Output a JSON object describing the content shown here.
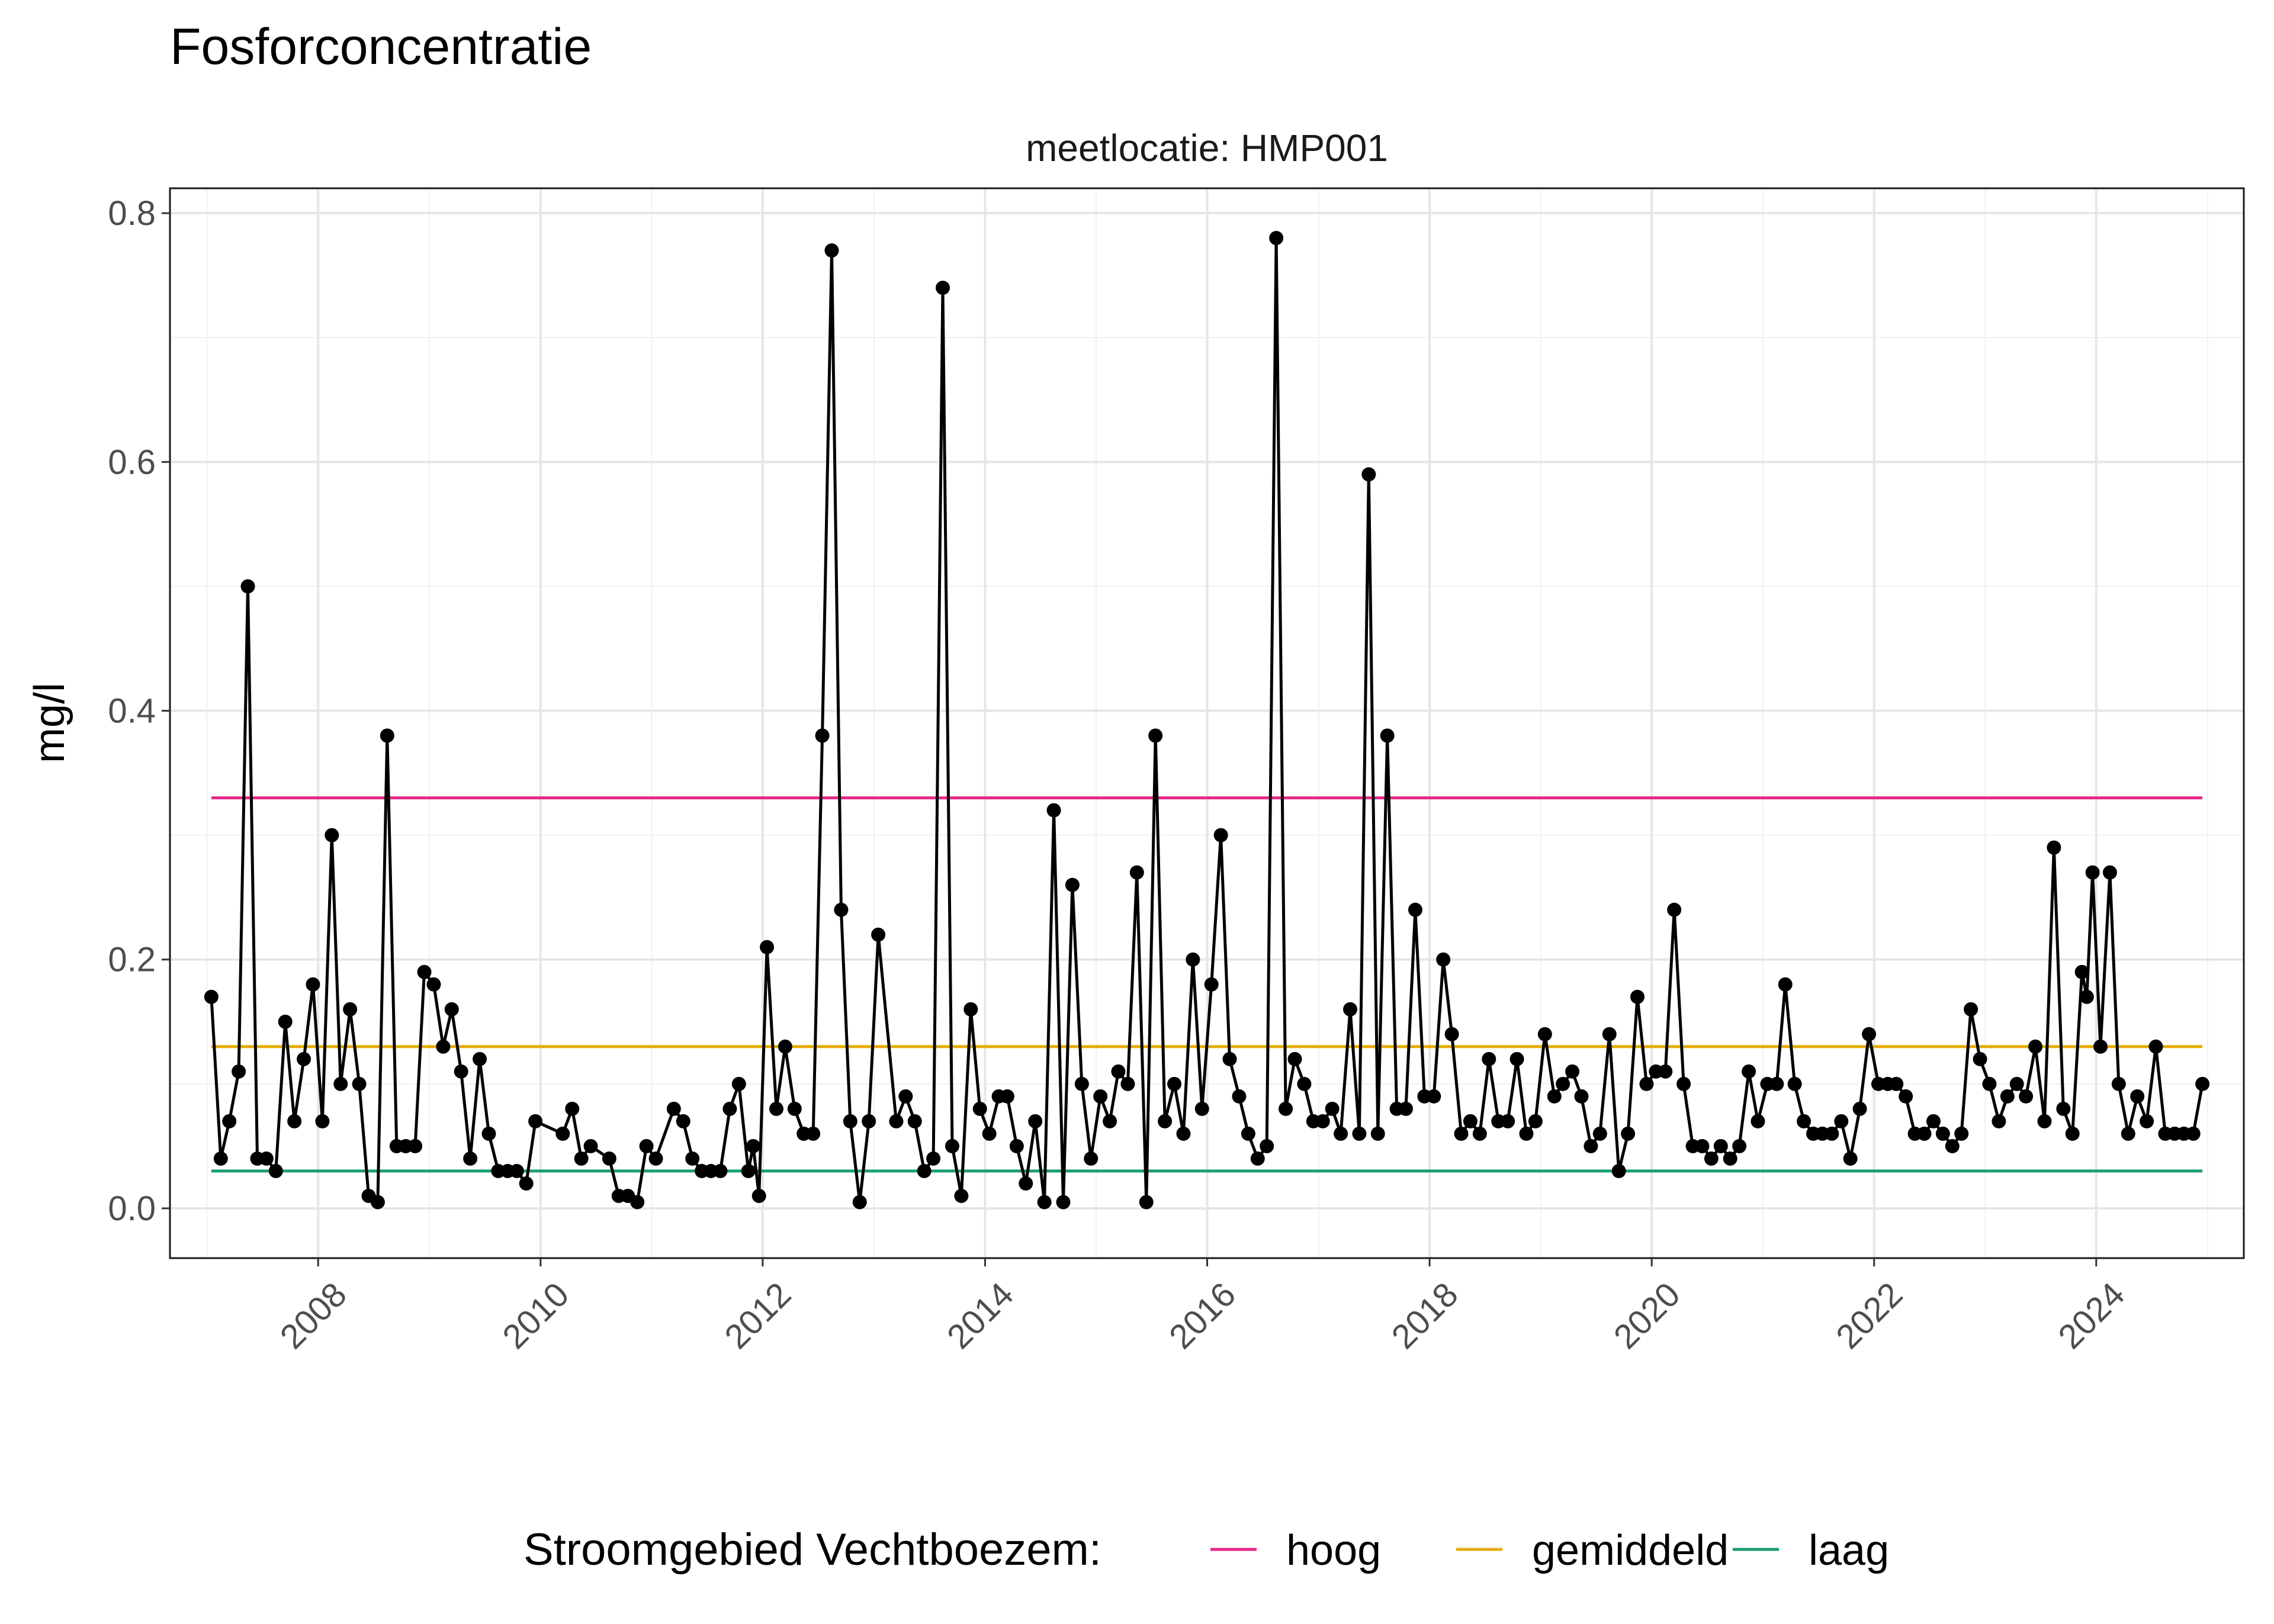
{
  "chart_data": {
    "type": "line",
    "title": "Fosforconcentratie",
    "facet_label": "meetlocatie: HMP001",
    "xlabel": "",
    "ylabel": "mg/l",
    "x_axis": {
      "type": "date",
      "range": [
        "2006-09-01",
        "2025-04-30"
      ],
      "tick_labels": [
        "2008",
        "2010",
        "2012",
        "2014",
        "2016",
        "2018",
        "2020",
        "2022",
        "2024"
      ],
      "tick_label_rotation_deg": 45
    },
    "y_axis": {
      "range": [
        -0.04,
        0.82
      ],
      "ticks": [
        0.0,
        0.2,
        0.4,
        0.6,
        0.8
      ],
      "tick_labels": [
        "0.0",
        "0.2",
        "0.4",
        "0.6",
        "0.8"
      ]
    },
    "grid": true,
    "legend": {
      "position": "bottom",
      "title": "Stroomgebied Vechtboezem:",
      "entries": [
        {
          "label": "hoog",
          "color": "#E7298A"
        },
        {
          "label": "gemiddeld",
          "color": "#E6AB02"
        },
        {
          "label": "laag",
          "color": "#1B9E77"
        }
      ]
    },
    "reference_lines": [
      {
        "name": "hoog",
        "y": 0.33,
        "x_start": "2007-01-15",
        "x_end": "2024-12-15",
        "color": "#E7298A"
      },
      {
        "name": "gemiddeld",
        "y": 0.13,
        "x_start": "2007-01-15",
        "x_end": "2024-12-15",
        "color": "#E6AB02"
      },
      {
        "name": "laag",
        "y": 0.03,
        "x_start": "2007-01-15",
        "x_end": "2024-12-15",
        "color": "#1B9E77"
      }
    ],
    "series": [
      {
        "color": "#000000",
        "points": [
          [
            "2007-01-15",
            0.17
          ],
          [
            "2007-02-15",
            0.04
          ],
          [
            "2007-03-15",
            0.07
          ],
          [
            "2007-04-15",
            0.11
          ],
          [
            "2007-05-15",
            0.5
          ],
          [
            "2007-06-15",
            0.04
          ],
          [
            "2007-07-15",
            0.04
          ],
          [
            "2007-08-15",
            0.03
          ],
          [
            "2007-09-15",
            0.15
          ],
          [
            "2007-10-15",
            0.07
          ],
          [
            "2007-11-15",
            0.12
          ],
          [
            "2007-12-15",
            0.18
          ],
          [
            "2008-01-15",
            0.07
          ],
          [
            "2008-02-15",
            0.3
          ],
          [
            "2008-03-15",
            0.1
          ],
          [
            "2008-04-15",
            0.16
          ],
          [
            "2008-05-15",
            0.1
          ],
          [
            "2008-06-15",
            0.01
          ],
          [
            "2008-07-15",
            0.005
          ],
          [
            "2008-08-15",
            0.38
          ],
          [
            "2008-09-15",
            0.05
          ],
          [
            "2008-10-15",
            0.05
          ],
          [
            "2008-11-15",
            0.05
          ],
          [
            "2008-12-15",
            0.19
          ],
          [
            "2009-01-15",
            0.18
          ],
          [
            "2009-02-15",
            0.13
          ],
          [
            "2009-03-15",
            0.16
          ],
          [
            "2009-04-15",
            0.11
          ],
          [
            "2009-05-15",
            0.04
          ],
          [
            "2009-06-15",
            0.12
          ],
          [
            "2009-07-15",
            0.06
          ],
          [
            "2009-08-15",
            0.03
          ],
          [
            "2009-09-15",
            0.03
          ],
          [
            "2009-10-15",
            0.03
          ],
          [
            "2009-11-15",
            0.02
          ],
          [
            "2009-12-15",
            0.07
          ],
          [
            "2010-03-15",
            0.06
          ],
          [
            "2010-04-15",
            0.08
          ],
          [
            "2010-05-15",
            0.04
          ],
          [
            "2010-06-15",
            0.05
          ],
          [
            "2010-08-15",
            0.04
          ],
          [
            "2010-09-15",
            0.01
          ],
          [
            "2010-10-15",
            0.01
          ],
          [
            "2010-11-15",
            0.005
          ],
          [
            "2010-12-15",
            0.05
          ],
          [
            "2011-01-15",
            0.04
          ],
          [
            "2011-03-15",
            0.08
          ],
          [
            "2011-04-15",
            0.07
          ],
          [
            "2011-05-15",
            0.04
          ],
          [
            "2011-06-15",
            0.03
          ],
          [
            "2011-07-15",
            0.03
          ],
          [
            "2011-08-15",
            0.03
          ],
          [
            "2011-09-15",
            0.08
          ],
          [
            "2011-10-15",
            0.1
          ],
          [
            "2011-11-15",
            0.03
          ],
          [
            "2011-12-01",
            0.05
          ],
          [
            "2011-12-20",
            0.01
          ],
          [
            "2012-01-15",
            0.21
          ],
          [
            "2012-02-15",
            0.08
          ],
          [
            "2012-03-15",
            0.13
          ],
          [
            "2012-04-15",
            0.08
          ],
          [
            "2012-05-15",
            0.06
          ],
          [
            "2012-06-15",
            0.06
          ],
          [
            "2012-07-15",
            0.38
          ],
          [
            "2012-08-15",
            0.77
          ],
          [
            "2012-09-15",
            0.24
          ],
          [
            "2012-10-15",
            0.07
          ],
          [
            "2012-11-15",
            0.005
          ],
          [
            "2012-12-15",
            0.07
          ],
          [
            "2013-01-15",
            0.22
          ],
          [
            "2013-03-15",
            0.07
          ],
          [
            "2013-04-15",
            0.09
          ],
          [
            "2013-05-15",
            0.07
          ],
          [
            "2013-06-15",
            0.03
          ],
          [
            "2013-07-15",
            0.04
          ],
          [
            "2013-08-15",
            0.74
          ],
          [
            "2013-09-15",
            0.05
          ],
          [
            "2013-10-15",
            0.01
          ],
          [
            "2013-11-15",
            0.16
          ],
          [
            "2013-12-15",
            0.08
          ],
          [
            "2014-01-15",
            0.06
          ],
          [
            "2014-02-15",
            0.09
          ],
          [
            "2014-03-15",
            0.09
          ],
          [
            "2014-04-15",
            0.05
          ],
          [
            "2014-05-15",
            0.02
          ],
          [
            "2014-06-15",
            0.07
          ],
          [
            "2014-07-15",
            0.005
          ],
          [
            "2014-08-15",
            0.32
          ],
          [
            "2014-09-15",
            0.005
          ],
          [
            "2014-10-15",
            0.26
          ],
          [
            "2014-11-15",
            0.1
          ],
          [
            "2014-12-15",
            0.04
          ],
          [
            "2015-01-15",
            0.09
          ],
          [
            "2015-02-15",
            0.07
          ],
          [
            "2015-03-15",
            0.11
          ],
          [
            "2015-04-15",
            0.1
          ],
          [
            "2015-05-15",
            0.27
          ],
          [
            "2015-06-15",
            0.005
          ],
          [
            "2015-07-15",
            0.38
          ],
          [
            "2015-08-15",
            0.07
          ],
          [
            "2015-09-15",
            0.1
          ],
          [
            "2015-10-15",
            0.06
          ],
          [
            "2015-11-15",
            0.2
          ],
          [
            "2015-12-15",
            0.08
          ],
          [
            "2016-01-15",
            0.18
          ],
          [
            "2016-02-15",
            0.3
          ],
          [
            "2016-03-15",
            0.12
          ],
          [
            "2016-04-15",
            0.09
          ],
          [
            "2016-05-15",
            0.06
          ],
          [
            "2016-06-15",
            0.04
          ],
          [
            "2016-07-15",
            0.05
          ],
          [
            "2016-08-15",
            0.78
          ],
          [
            "2016-09-15",
            0.08
          ],
          [
            "2016-10-15",
            0.12
          ],
          [
            "2016-11-15",
            0.1
          ],
          [
            "2016-12-15",
            0.07
          ],
          [
            "2017-01-15",
            0.07
          ],
          [
            "2017-02-15",
            0.08
          ],
          [
            "2017-03-15",
            0.06
          ],
          [
            "2017-04-15",
            0.16
          ],
          [
            "2017-05-15",
            0.06
          ],
          [
            "2017-06-15",
            0.59
          ],
          [
            "2017-07-15",
            0.06
          ],
          [
            "2017-08-15",
            0.38
          ],
          [
            "2017-09-15",
            0.08
          ],
          [
            "2017-10-15",
            0.08
          ],
          [
            "2017-11-15",
            0.24
          ],
          [
            "2017-12-15",
            0.09
          ],
          [
            "2018-01-15",
            0.09
          ],
          [
            "2018-02-15",
            0.2
          ],
          [
            "2018-03-15",
            0.14
          ],
          [
            "2018-04-15",
            0.06
          ],
          [
            "2018-05-15",
            0.07
          ],
          [
            "2018-06-15",
            0.06
          ],
          [
            "2018-07-15",
            0.12
          ],
          [
            "2018-08-15",
            0.07
          ],
          [
            "2018-09-15",
            0.07
          ],
          [
            "2018-10-15",
            0.12
          ],
          [
            "2018-11-15",
            0.06
          ],
          [
            "2018-12-15",
            0.07
          ],
          [
            "2019-01-15",
            0.14
          ],
          [
            "2019-02-15",
            0.09
          ],
          [
            "2019-03-15",
            0.1
          ],
          [
            "2019-04-15",
            0.11
          ],
          [
            "2019-05-15",
            0.09
          ],
          [
            "2019-06-15",
            0.05
          ],
          [
            "2019-07-15",
            0.06
          ],
          [
            "2019-08-15",
            0.14
          ],
          [
            "2019-09-15",
            0.03
          ],
          [
            "2019-10-15",
            0.06
          ],
          [
            "2019-11-15",
            0.17
          ],
          [
            "2019-12-15",
            0.1
          ],
          [
            "2020-01-15",
            0.11
          ],
          [
            "2020-02-15",
            0.11
          ],
          [
            "2020-03-15",
            0.24
          ],
          [
            "2020-04-15",
            0.1
          ],
          [
            "2020-05-15",
            0.05
          ],
          [
            "2020-06-15",
            0.05
          ],
          [
            "2020-07-15",
            0.04
          ],
          [
            "2020-08-15",
            0.05
          ],
          [
            "2020-09-15",
            0.04
          ],
          [
            "2020-10-15",
            0.05
          ],
          [
            "2020-11-15",
            0.11
          ],
          [
            "2020-12-15",
            0.07
          ],
          [
            "2021-01-15",
            0.1
          ],
          [
            "2021-02-15",
            0.1
          ],
          [
            "2021-03-15",
            0.18
          ],
          [
            "2021-04-15",
            0.1
          ],
          [
            "2021-05-15",
            0.07
          ],
          [
            "2021-06-15",
            0.06
          ],
          [
            "2021-07-15",
            0.06
          ],
          [
            "2021-08-15",
            0.06
          ],
          [
            "2021-09-15",
            0.07
          ],
          [
            "2021-10-15",
            0.04
          ],
          [
            "2021-11-15",
            0.08
          ],
          [
            "2021-12-15",
            0.14
          ],
          [
            "2022-01-15",
            0.1
          ],
          [
            "2022-02-15",
            0.1
          ],
          [
            "2022-03-15",
            0.1
          ],
          [
            "2022-04-15",
            0.09
          ],
          [
            "2022-05-15",
            0.06
          ],
          [
            "2022-06-15",
            0.06
          ],
          [
            "2022-07-15",
            0.07
          ],
          [
            "2022-08-15",
            0.06
          ],
          [
            "2022-09-15",
            0.05
          ],
          [
            "2022-10-15",
            0.06
          ],
          [
            "2022-11-15",
            0.16
          ],
          [
            "2022-12-15",
            0.12
          ],
          [
            "2023-01-15",
            0.1
          ],
          [
            "2023-02-15",
            0.07
          ],
          [
            "2023-03-15",
            0.09
          ],
          [
            "2023-04-15",
            0.1
          ],
          [
            "2023-05-15",
            0.09
          ],
          [
            "2023-06-15",
            0.13
          ],
          [
            "2023-07-15",
            0.07
          ],
          [
            "2023-08-15",
            0.29
          ],
          [
            "2023-09-15",
            0.08
          ],
          [
            "2023-10-15",
            0.06
          ],
          [
            "2023-11-15",
            0.19
          ],
          [
            "2023-12-01",
            0.17
          ],
          [
            "2023-12-20",
            0.27
          ],
          [
            "2024-01-15",
            0.13
          ],
          [
            "2024-02-15",
            0.27
          ],
          [
            "2024-03-15",
            0.1
          ],
          [
            "2024-04-15",
            0.06
          ],
          [
            "2024-05-15",
            0.09
          ],
          [
            "2024-06-15",
            0.07
          ],
          [
            "2024-07-15",
            0.13
          ],
          [
            "2024-08-15",
            0.06
          ],
          [
            "2024-09-15",
            0.06
          ],
          [
            "2024-10-15",
            0.06
          ],
          [
            "2024-11-15",
            0.06
          ],
          [
            "2024-12-15",
            0.1
          ]
        ]
      }
    ]
  }
}
